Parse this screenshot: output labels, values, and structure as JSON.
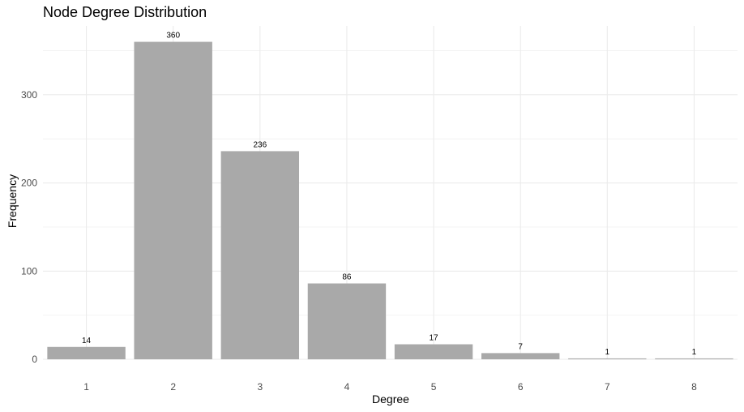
{
  "chart_data": {
    "type": "bar",
    "title": "Node Degree Distribution",
    "xlabel": "Degree",
    "ylabel": "Frequency",
    "categories": [
      "1",
      "2",
      "3",
      "4",
      "5",
      "6",
      "7",
      "8"
    ],
    "values": [
      14,
      360,
      236,
      86,
      17,
      7,
      1,
      1
    ],
    "data_labels": [
      "14",
      "360",
      "236",
      "86",
      "17",
      "7",
      "1",
      "1"
    ],
    "y_ticks": [
      0,
      100,
      200,
      300
    ],
    "ylim": [
      0,
      378
    ],
    "grid": true,
    "legend": "none",
    "colors": {
      "bar": "#a9a9a9",
      "grid": "#ebebeb"
    }
  }
}
